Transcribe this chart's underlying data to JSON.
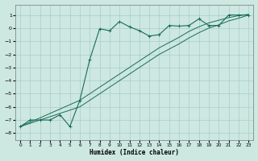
{
  "xlabel": "Humidex (Indice chaleur)",
  "background_color": "#cce8e0",
  "grid_color": "#aacccc",
  "line_color": "#1a6b5a",
  "xlim": [
    -0.5,
    23.5
  ],
  "ylim": [
    -8.5,
    1.8
  ],
  "xticks": [
    0,
    1,
    2,
    3,
    4,
    5,
    6,
    7,
    8,
    9,
    10,
    11,
    12,
    13,
    14,
    15,
    16,
    17,
    18,
    19,
    20,
    21,
    22,
    23
  ],
  "yticks": [
    -8,
    -7,
    -6,
    -5,
    -4,
    -3,
    -2,
    -1,
    0,
    1
  ],
  "series1_x": [
    0,
    1,
    2,
    3,
    4,
    5,
    6,
    7,
    8,
    9,
    10,
    11,
    12,
    13,
    14,
    15,
    16,
    17,
    18,
    19,
    20,
    21,
    22,
    23
  ],
  "series1_y": [
    -7.5,
    -7.0,
    -7.0,
    -7.0,
    -6.6,
    -7.5,
    -5.5,
    -2.4,
    -0.05,
    -0.2,
    0.5,
    0.1,
    -0.2,
    -0.6,
    -0.5,
    0.2,
    0.15,
    0.2,
    0.7,
    0.2,
    0.2,
    1.0,
    1.0,
    1.0
  ],
  "series2_x": [
    0,
    6,
    7,
    8,
    9,
    10,
    11,
    12,
    13,
    14,
    15,
    16,
    17,
    18,
    19,
    20,
    21,
    22,
    23
  ],
  "series2_y": [
    -7.5,
    -5.5,
    -5.0,
    -4.5,
    -4.0,
    -3.5,
    -3.0,
    -2.5,
    -2.0,
    -1.5,
    -1.1,
    -0.7,
    -0.25,
    0.1,
    0.4,
    0.6,
    0.8,
    0.95,
    1.05
  ],
  "series3_x": [
    0,
    6,
    7,
    8,
    9,
    10,
    11,
    12,
    13,
    14,
    15,
    16,
    17,
    18,
    19,
    20,
    21,
    22,
    23
  ],
  "series3_y": [
    -7.5,
    -6.0,
    -5.5,
    -5.0,
    -4.5,
    -4.0,
    -3.5,
    -3.0,
    -2.5,
    -2.0,
    -1.6,
    -1.2,
    -0.75,
    -0.35,
    0.0,
    0.25,
    0.55,
    0.75,
    1.0
  ]
}
